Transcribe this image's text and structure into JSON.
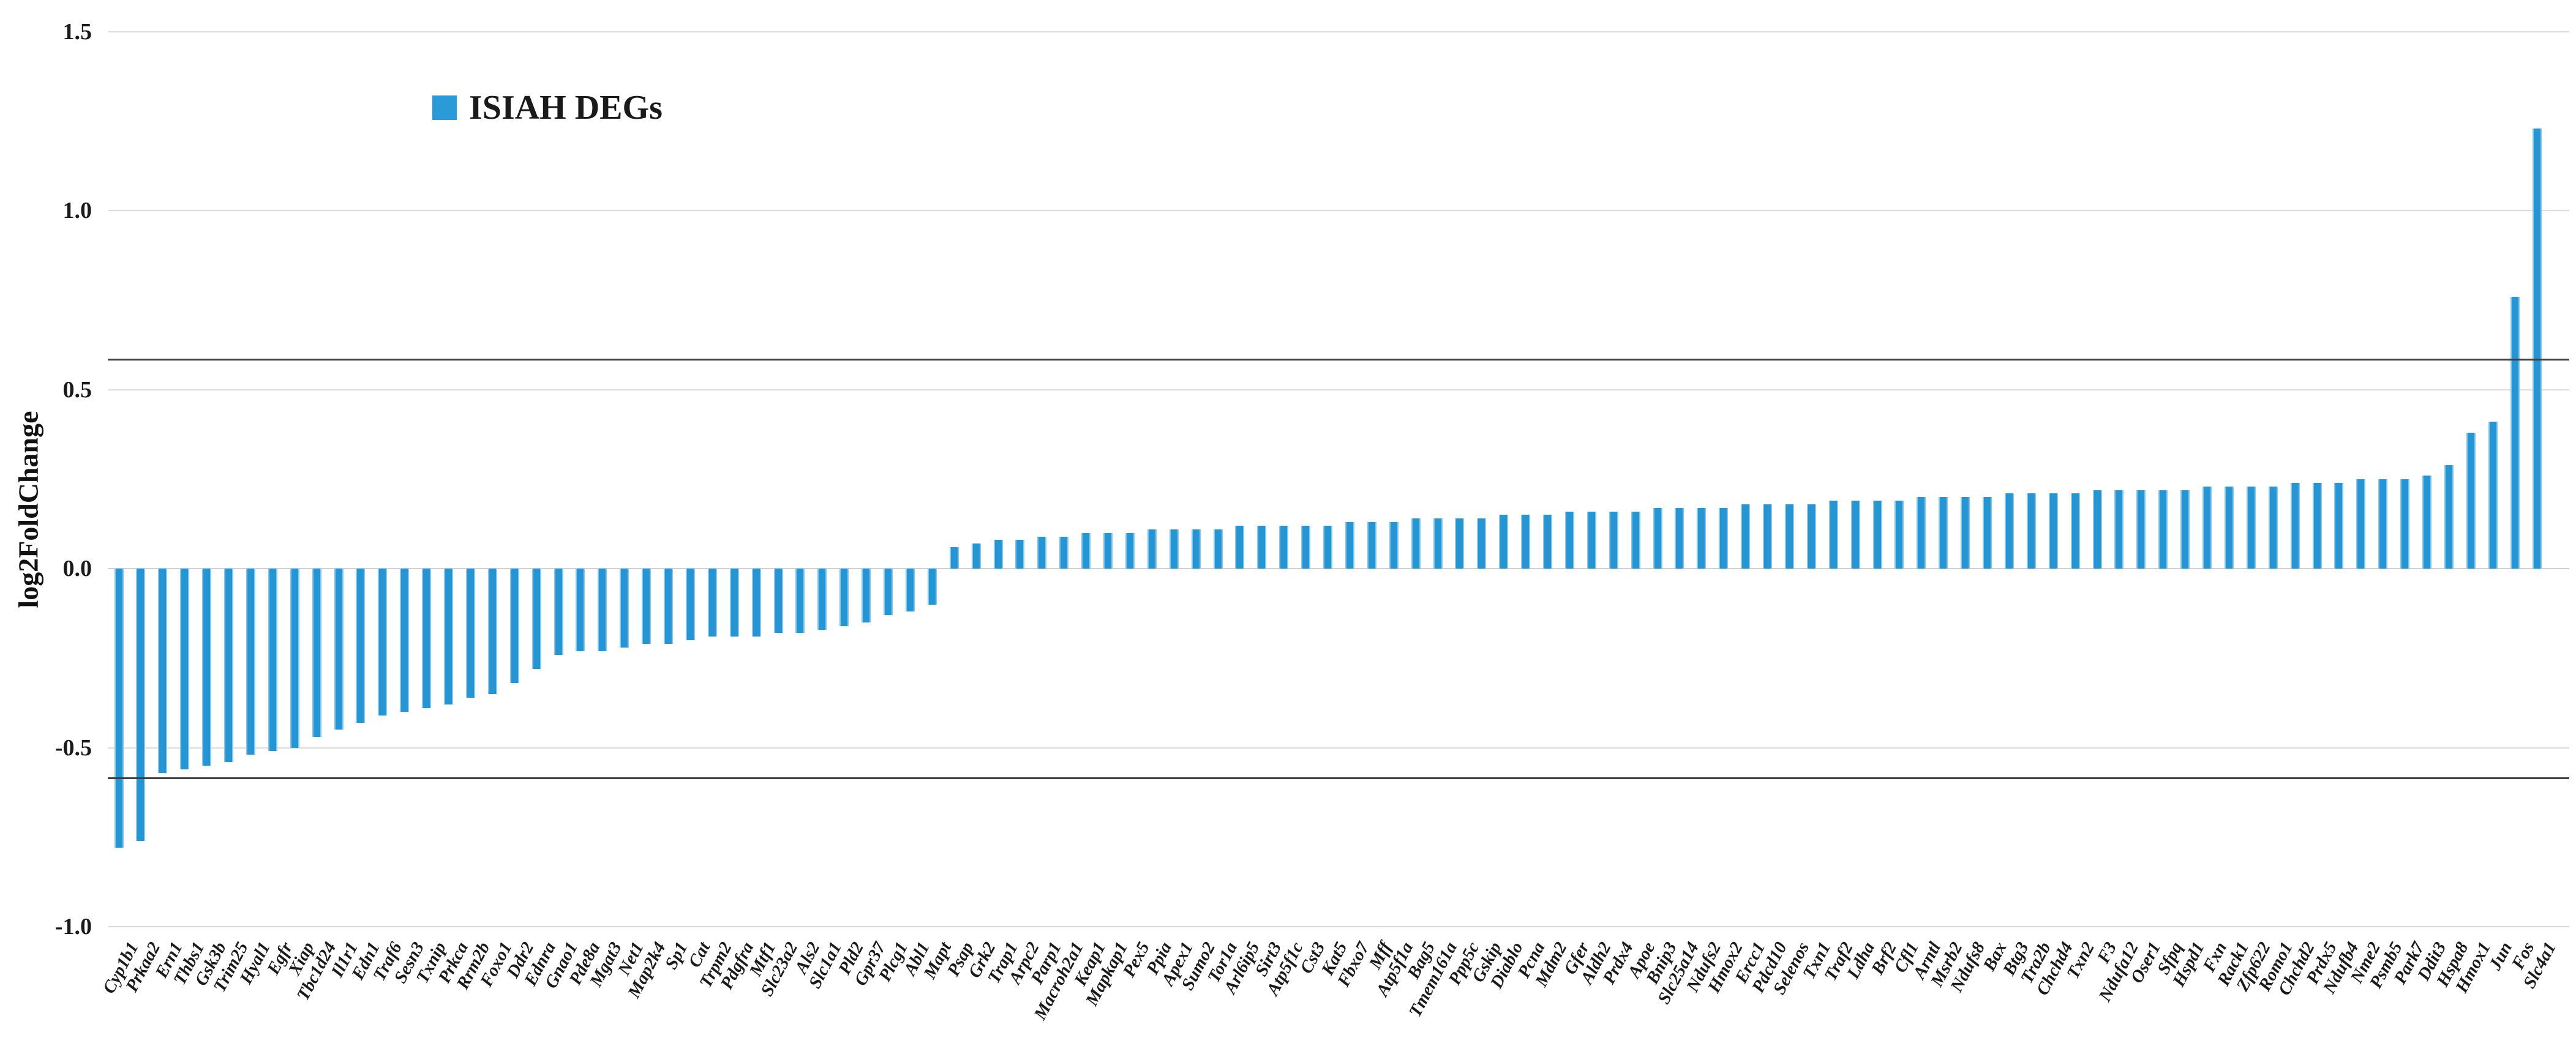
{
  "legend": {
    "label": "ISIAH DEGs",
    "marker_color": "#2B9BD7"
  },
  "y_axis": {
    "title": "log2FoldChange",
    "ticks": [
      {
        "label": "1.5",
        "value": 1.5
      },
      {
        "label": "1.0",
        "value": 1.0
      },
      {
        "label": "0.5",
        "value": 0.5
      },
      {
        "label": "0.0",
        "value": 0.0
      },
      {
        "label": "-0.5",
        "value": -0.5
      },
      {
        "label": "-1.0",
        "value": -1.0
      }
    ]
  },
  "thresholds": {
    "upper": 0.585,
    "lower": -0.585,
    "color": "#3f3f3f"
  },
  "chart_data": {
    "type": "bar",
    "title": "",
    "xlabel": "",
    "ylabel": "log2FoldChange",
    "ylim": [
      -1.0,
      1.5
    ],
    "grid": "horizontal",
    "legend_entries": [
      "ISIAH DEGs"
    ],
    "legend_position": "inside-top-left",
    "bar_color": "#2B9BD7",
    "annotations": [
      "horizontal significance threshold lines at +0.585 and -0.585"
    ],
    "categories": [
      "Cyp1b1",
      "Prkaa2",
      "Ern1",
      "Thbs1",
      "Gsk3b",
      "Trim25",
      "Hyal1",
      "Egfr",
      "Xiap",
      "Tbc1d24",
      "Il1r1",
      "Edn1",
      "Traf6",
      "Sesn3",
      "Txnip",
      "Prkca",
      "Rrm2b",
      "Foxo1",
      "Ddr2",
      "Ednra",
      "Gnao1",
      "Pde8a",
      "Mgat3",
      "Net1",
      "Map2k4",
      "Sp1",
      "Cat",
      "Trpm2",
      "Pdgfra",
      "Mtf1",
      "Slc23a2",
      "Als2",
      "Slc1a1",
      "Pld2",
      "Gpr37",
      "Plcg1",
      "Abl1",
      "Mapt",
      "Psap",
      "Grk2",
      "Trap1",
      "Arpc2",
      "Parp1",
      "Macroh2a1",
      "Keap1",
      "Mapkap1",
      "Pex5",
      "Ppia",
      "Apex1",
      "Sumo2",
      "Tor1a",
      "Arl6ip5",
      "Sirt3",
      "Atp5f1c",
      "Cst3",
      "Kat5",
      "Fbxo7",
      "Mff",
      "Atp5f1a",
      "Bag5",
      "Tmem161a",
      "Ppp5c",
      "Gskip",
      "Diablo",
      "Pcna",
      "Mdm2",
      "Gfer",
      "Aldh2",
      "Prdx4",
      "Apoe",
      "Bnip3",
      "Slc25a14",
      "Ndufs2",
      "Hmox2",
      "Ercc1",
      "Pdcd10",
      "Selenos",
      "Txn1",
      "Traf2",
      "Ldha",
      "Brf2",
      "Cfl1",
      "Arntl",
      "Msrb2",
      "Ndufs8",
      "Bax",
      "Btg3",
      "Tra2b",
      "Chchd4",
      "Txn2",
      "F3",
      "Ndufa12",
      "Oser1",
      "Sfpq",
      "Hspd1",
      "Fxn",
      "Rack1",
      "Zfp622",
      "Romo1",
      "Chchd2",
      "Prdx5",
      "Ndufb4",
      "Nme2",
      "Psmb5",
      "Park7",
      "Ddit3",
      "Hspa8",
      "Hmox1",
      "Jun",
      "Fos",
      "Slc4a1"
    ],
    "values": [
      -0.78,
      -0.76,
      -0.57,
      -0.56,
      -0.55,
      -0.54,
      -0.52,
      -0.51,
      -0.5,
      -0.47,
      -0.45,
      -0.43,
      -0.41,
      -0.4,
      -0.39,
      -0.38,
      -0.36,
      -0.35,
      -0.32,
      -0.28,
      -0.24,
      -0.23,
      -0.23,
      -0.22,
      -0.21,
      -0.21,
      -0.2,
      -0.19,
      -0.19,
      -0.19,
      -0.18,
      -0.18,
      -0.17,
      -0.16,
      -0.15,
      -0.13,
      -0.12,
      -0.1,
      0.06,
      0.07,
      0.08,
      0.08,
      0.09,
      0.09,
      0.1,
      0.1,
      0.1,
      0.11,
      0.11,
      0.11,
      0.11,
      0.12,
      0.12,
      0.12,
      0.12,
      0.12,
      0.13,
      0.13,
      0.13,
      0.14,
      0.14,
      0.14,
      0.14,
      0.15,
      0.15,
      0.15,
      0.16,
      0.16,
      0.16,
      0.16,
      0.17,
      0.17,
      0.17,
      0.17,
      0.18,
      0.18,
      0.18,
      0.18,
      0.19,
      0.19,
      0.19,
      0.19,
      0.2,
      0.2,
      0.2,
      0.2,
      0.21,
      0.21,
      0.21,
      0.21,
      0.22,
      0.22,
      0.22,
      0.22,
      0.22,
      0.23,
      0.23,
      0.23,
      0.23,
      0.24,
      0.24,
      0.24,
      0.25,
      0.25,
      0.25,
      0.26,
      0.29,
      0.38,
      0.41,
      0.76,
      1.23
    ]
  }
}
